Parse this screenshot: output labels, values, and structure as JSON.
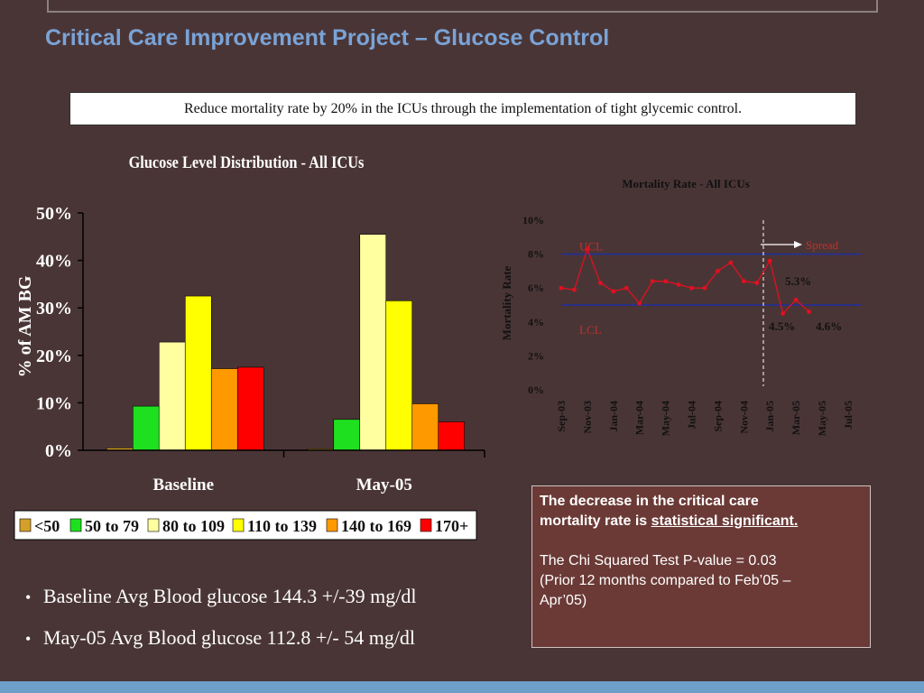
{
  "slide": {
    "title": "Critical Care Improvement Project – Glucose Control",
    "objective": "Reduce mortality rate by 20% in the ICUs through the implementation of tight glycemic control."
  },
  "bullets": [
    "Baseline Avg Blood glucose 144.3 +/-39 mg/dl",
    "May-05 Avg Blood glucose 112.8 +/- 54 mg/dl"
  ],
  "note": {
    "line1": "The decrease in the critical care",
    "line2_plain": "mortality rate is ",
    "line2_underlined": "statistical significant.",
    "line3": "The Chi Squared Test P-value = 0.03",
    "line4": "(Prior 12 months compared to Feb’05 –",
    "line5": "Apr’05)"
  },
  "colors": {
    "background": "#4a3536",
    "title": "#7aa3d6",
    "control_line": "#1f2f9f",
    "series_line": "#e01020",
    "annotation": "#c0302a",
    "note_box": "#6b3a36"
  },
  "chart_data": [
    {
      "type": "bar",
      "title": "Glucose Level Distribution - All ICUs",
      "ylabel": "% of AM BG",
      "xlabel": "",
      "ylim": [
        0,
        50
      ],
      "yticks": [
        0,
        10,
        20,
        30,
        40,
        50
      ],
      "ytick_labels": [
        "0%",
        "10%",
        "20%",
        "30%",
        "40%",
        "50%"
      ],
      "categories": [
        "Baseline",
        "May-05"
      ],
      "legend_position": "bottom",
      "series": [
        {
          "name": "<50",
          "color": "#d4a02a",
          "values": [
            0.5,
            0.3
          ]
        },
        {
          "name": "50 to 79",
          "color": "#1fe01f",
          "values": [
            9.3,
            6.5
          ]
        },
        {
          "name": "80 to 109",
          "color": "#ffffa0",
          "values": [
            22.8,
            45.5
          ]
        },
        {
          "name": "110 to 139",
          "color": "#ffff00",
          "values": [
            32.5,
            31.5
          ]
        },
        {
          "name": "140 to 169",
          "color": "#ff9900",
          "values": [
            17.2,
            9.8
          ]
        },
        {
          "name": "170+",
          "color": "#ff0000",
          "values": [
            17.5,
            6.0
          ]
        }
      ]
    },
    {
      "type": "line",
      "title": "Mortality Rate - All ICUs",
      "ylabel": "Mortality Rate",
      "xlabel": "",
      "ylim": [
        0,
        10
      ],
      "yticks": [
        0,
        2,
        4,
        6,
        8,
        10
      ],
      "ytick_labels": [
        "0%",
        "2%",
        "4%",
        "6%",
        "8%",
        "10%"
      ],
      "x": [
        "Sep-03",
        "Oct-03",
        "Nov-03",
        "Dec-03",
        "Jan-04",
        "Feb-04",
        "Mar-04",
        "Apr-04",
        "May-04",
        "Jun-04",
        "Jul-04",
        "Aug-04",
        "Sep-04",
        "Oct-04",
        "Nov-04",
        "Dec-04",
        "Jan-05",
        "Feb-05",
        "Mar-05",
        "Apr-05",
        "May-05",
        "Jun-05",
        "Jul-05"
      ],
      "xtick_labels": [
        "Sep-03",
        "Nov-03",
        "Jan-04",
        "Mar-04",
        "May-04",
        "Jul-04",
        "Sep-04",
        "Nov-04",
        "Jan-05",
        "Mar-05",
        "May-05",
        "Jul-05"
      ],
      "series": [
        {
          "name": "",
          "values": [
            6.0,
            5.9,
            8.3,
            6.3,
            5.8,
            6.0,
            5.1,
            6.4,
            6.4,
            6.2,
            6.0,
            6.0,
            7.0,
            7.5,
            6.4,
            6.3,
            7.6,
            4.5,
            5.3,
            4.6,
            null,
            null,
            null
          ]
        }
      ],
      "ucl": 8.0,
      "lcl": 5.0,
      "ucl_label": "UCL",
      "lcl_label": "LCL",
      "divider_at": "Dec-04",
      "annotations": [
        {
          "text": "Spread"
        },
        {
          "text": "5.3%"
        },
        {
          "text": "4.5%"
        },
        {
          "text": "4.6%"
        }
      ]
    }
  ]
}
